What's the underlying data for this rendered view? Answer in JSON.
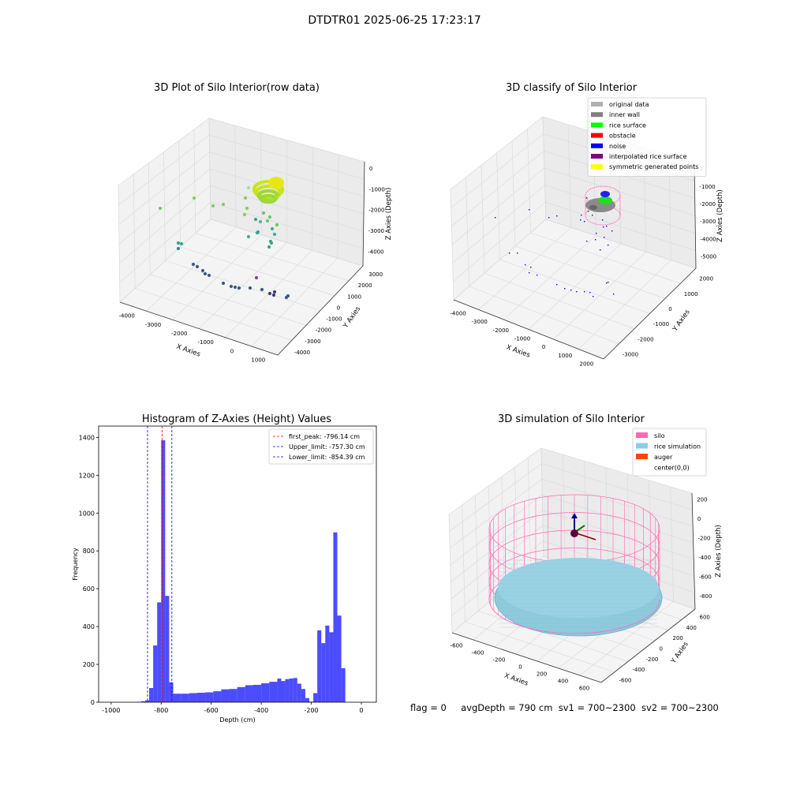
{
  "figure": {
    "suptitle": "DTDTR01 2025-06-25 17:23:17",
    "footer": {
      "flag": "flag = 0",
      "avg_depth": "avgDepth = 790 cm",
      "sv1": "sv1 = 700~2300",
      "sv2": "sv2 = 700~2300"
    }
  },
  "panels": {
    "p1": {
      "title": "3D Plot of Silo Interior(row data)",
      "xlabel": "X Axies",
      "ylabel": "Y Axies",
      "zlabel": "Z Axies (Depth)",
      "xticks": [
        "-4000",
        "-3000",
        "-2000",
        "-1000",
        "0",
        "1000"
      ],
      "yticks": [
        "-4000",
        "-3000",
        "-2000",
        "-1000",
        "0",
        "1000",
        "2000",
        "3000"
      ],
      "zticks": [
        "0",
        "-1000",
        "-2000",
        "-3000",
        "-4000"
      ]
    },
    "p2": {
      "title": "3D classify of Silo Interior",
      "xlabel": "X Axies",
      "ylabel": "Y Axies",
      "zlabel": "Z Axies (Depth)",
      "xticks": [
        "-4000",
        "-3000",
        "-2000",
        "-1000",
        "0",
        "1000",
        "2000"
      ],
      "yticks": [
        "-3000",
        "-2000",
        "-1000",
        "0",
        "1000",
        "2000"
      ],
      "zticks": [
        "0",
        "-1000",
        "-2000",
        "-3000",
        "-4000",
        "-5000"
      ],
      "legend": [
        {
          "label": "original data",
          "color": "#b0b0b0"
        },
        {
          "label": "inner wall",
          "color": "#808080"
        },
        {
          "label": "rice surface",
          "color": "#00ff00"
        },
        {
          "label": "obstacle",
          "color": "#ff0000"
        },
        {
          "label": "noise",
          "color": "#0000ff"
        },
        {
          "label": "interpolated rice surface",
          "color": "#800080"
        },
        {
          "label": "symmetric generated points",
          "color": "#ffff00"
        }
      ]
    },
    "p4": {
      "title": "3D simulation of Silo Interior",
      "xlabel": "X Axies",
      "ylabel": "Y Axies",
      "zlabel": "Z Axies (Depth)",
      "xticks": [
        "-600",
        "-400",
        "-200",
        "0",
        "200",
        "400",
        "600"
      ],
      "yticks": [
        "-600",
        "-400",
        "-200",
        "0",
        "200",
        "400",
        "600"
      ],
      "zticks": [
        "200",
        "0",
        "-200",
        "-400",
        "-600",
        "-800"
      ],
      "legend": [
        {
          "label": "silo",
          "color": "#ff69b4"
        },
        {
          "label": "rice simulation",
          "color": "#87ceeb"
        },
        {
          "label": "auger",
          "color": "#ff4500"
        },
        {
          "label": "center(0,0)",
          "color": ""
        }
      ]
    }
  },
  "chart_data": [
    {
      "type": "histogram",
      "title": "Histogram of Z-Axies (Height) Values",
      "xlabel": "Depth (cm)",
      "ylabel": "Frequency",
      "xlim": [
        -1050,
        60
      ],
      "ylim": [
        0,
        1460
      ],
      "xticks": [
        -1000,
        -800,
        -600,
        -400,
        -200,
        0
      ],
      "yticks": [
        0,
        200,
        400,
        600,
        800,
        1000,
        1200,
        1400
      ],
      "bar_color": "#0000ff",
      "bins": [
        {
          "x0": -896,
          "x1": -880,
          "count": 2
        },
        {
          "x0": -880,
          "x1": -864,
          "count": 5
        },
        {
          "x0": -864,
          "x1": -848,
          "count": 10
        },
        {
          "x0": -848,
          "x1": -832,
          "count": 75
        },
        {
          "x0": -832,
          "x1": -816,
          "count": 300
        },
        {
          "x0": -816,
          "x1": -800,
          "count": 528
        },
        {
          "x0": -800,
          "x1": -784,
          "count": 1385
        },
        {
          "x0": -784,
          "x1": -768,
          "count": 562
        },
        {
          "x0": -768,
          "x1": -752,
          "count": 105
        },
        {
          "x0": -752,
          "x1": -720,
          "count": 45
        },
        {
          "x0": -720,
          "x1": -688,
          "count": 45
        },
        {
          "x0": -688,
          "x1": -656,
          "count": 48
        },
        {
          "x0": -656,
          "x1": -624,
          "count": 50
        },
        {
          "x0": -624,
          "x1": -592,
          "count": 52
        },
        {
          "x0": -592,
          "x1": -560,
          "count": 58
        },
        {
          "x0": -560,
          "x1": -528,
          "count": 68
        },
        {
          "x0": -528,
          "x1": -496,
          "count": 70
        },
        {
          "x0": -496,
          "x1": -464,
          "count": 80
        },
        {
          "x0": -464,
          "x1": -432,
          "count": 90
        },
        {
          "x0": -432,
          "x1": -400,
          "count": 92
        },
        {
          "x0": -400,
          "x1": -368,
          "count": 100
        },
        {
          "x0": -368,
          "x1": -336,
          "count": 108
        },
        {
          "x0": -336,
          "x1": -320,
          "count": 125
        },
        {
          "x0": -320,
          "x1": -304,
          "count": 112
        },
        {
          "x0": -304,
          "x1": -288,
          "count": 122
        },
        {
          "x0": -288,
          "x1": -272,
          "count": 125
        },
        {
          "x0": -272,
          "x1": -256,
          "count": 128
        },
        {
          "x0": -256,
          "x1": -240,
          "count": 98
        },
        {
          "x0": -240,
          "x1": -224,
          "count": 70
        },
        {
          "x0": -224,
          "x1": -208,
          "count": 22
        },
        {
          "x0": -208,
          "x1": -192,
          "count": 3
        },
        {
          "x0": -192,
          "x1": -176,
          "count": 48
        },
        {
          "x0": -176,
          "x1": -160,
          "count": 380
        },
        {
          "x0": -160,
          "x1": -144,
          "count": 312
        },
        {
          "x0": -144,
          "x1": -128,
          "count": 405
        },
        {
          "x0": -128,
          "x1": -112,
          "count": 370
        },
        {
          "x0": -112,
          "x1": -96,
          "count": 898
        },
        {
          "x0": -96,
          "x1": -80,
          "count": 458
        },
        {
          "x0": -80,
          "x1": -64,
          "count": 180
        }
      ],
      "vlines": [
        {
          "x": -796.14,
          "color": "#ff0000",
          "label": "first_peak: -796.14 cm"
        },
        {
          "x": -757.3,
          "color": "#0000ff",
          "label": "Upper_limit: -757.30 cm"
        },
        {
          "x": -854.39,
          "color": "#0000ff",
          "label": "Lower_limit: -854.39 cm"
        }
      ],
      "legend_position": "upper-right"
    }
  ]
}
